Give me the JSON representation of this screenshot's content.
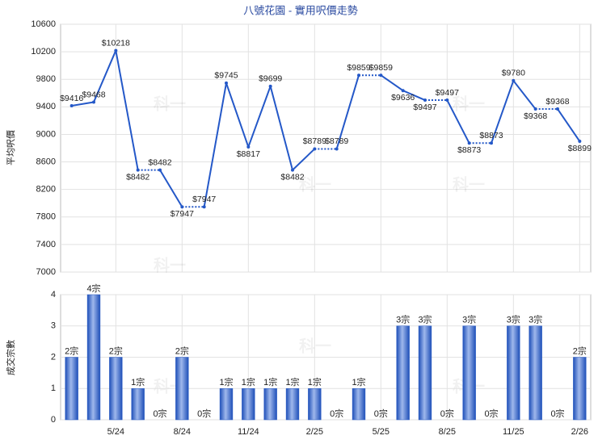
{
  "chart_data": [
    {
      "type": "line",
      "title": "八號花園 - 實用呎價走勢",
      "ylabel": "平均呎價",
      "watermark": "科一",
      "series": [
        {
          "name": "平均呎價",
          "color": "#2458c8",
          "values": [
            9416,
            9468,
            10218,
            8482,
            8482,
            7947,
            7947,
            9745,
            8817,
            9699,
            8482,
            8789,
            8789,
            9859,
            9859,
            9636,
            9497,
            9497,
            8873,
            8873,
            9780,
            9368,
            9368,
            8899
          ],
          "value_labels": [
            "$9416",
            "$9468",
            "$10218",
            "$8482",
            "$8482",
            "$7947",
            "$7947",
            "$9745",
            "$8817",
            "$9699",
            "$8482",
            "$8789",
            "$8789",
            "$9859",
            "$9859",
            "$9636",
            "$9497",
            "$9497",
            "$8873",
            "$8873",
            "$9780",
            "$9368",
            "$9368",
            "$8899"
          ]
        }
      ],
      "ylim": [
        7000,
        10600
      ],
      "yticks": [
        7000,
        7400,
        7800,
        8200,
        8600,
        9000,
        9400,
        9800,
        10200,
        10600
      ],
      "grid": true
    },
    {
      "type": "bar",
      "ylabel": "成交宗數",
      "categories": [
        null,
        null,
        "5/24",
        null,
        null,
        "8/24",
        null,
        null,
        "11/24",
        null,
        null,
        "2/25",
        null,
        null,
        "5/25",
        null,
        null,
        "8/25",
        null,
        null,
        "11/25",
        null,
        null,
        "2/26"
      ],
      "series": [
        {
          "name": "成交宗數",
          "color": "#2a5cc6",
          "values": [
            2,
            4,
            2,
            1,
            0,
            2,
            0,
            1,
            1,
            1,
            1,
            1,
            0,
            1,
            0,
            3,
            3,
            0,
            3,
            0,
            3,
            3,
            0,
            2
          ],
          "value_labels": [
            "2宗",
            "4宗",
            "2宗",
            "1宗",
            "0宗",
            "2宗",
            "0宗",
            "1宗",
            "1宗",
            "1宗",
            "1宗",
            "1宗",
            "0宗",
            "1宗",
            "0宗",
            "3宗",
            "3宗",
            "0宗",
            "3宗",
            "0宗",
            "3宗",
            "3宗",
            "0宗",
            "2宗"
          ]
        }
      ],
      "ylim": [
        0,
        4
      ],
      "yticks": [
        0,
        1,
        2,
        3,
        4
      ],
      "grid": true
    }
  ]
}
